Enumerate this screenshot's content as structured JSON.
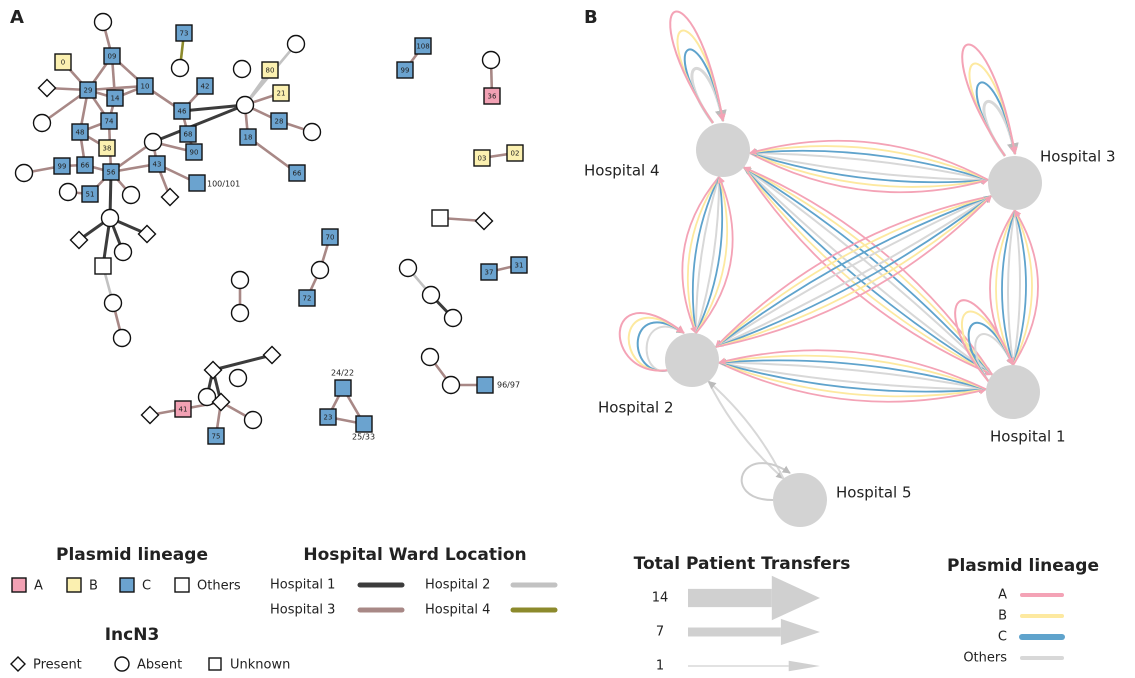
{
  "panel_a": {
    "tag": "A",
    "node_labels": [
      "73",
      "09",
      "0",
      "29",
      "10",
      "14",
      "42",
      "80",
      "21",
      "46",
      "74",
      "28",
      "48",
      "68",
      "18",
      "38",
      "90",
      "99",
      "66",
      "56",
      "43",
      "66",
      "51",
      "108",
      "99",
      "36",
      "03",
      "02",
      "70",
      "72",
      "37",
      "31",
      "23",
      "41",
      "75"
    ],
    "outer_labels": [
      "100/101",
      "24/22",
      "25/33",
      "96/97"
    ]
  },
  "panel_b": {
    "tag": "B",
    "hospitals": [
      "Hospital 1",
      "Hospital 2",
      "Hospital 3",
      "Hospital 4",
      "Hospital 5"
    ]
  },
  "legend_a": {
    "lineage_title": "Plasmid lineage",
    "lineage": [
      "A",
      "B",
      "C",
      "Others"
    ],
    "ward_title": "Hospital Ward Location",
    "wards": [
      "Hospital 1",
      "Hospital 2",
      "Hospital 3",
      "Hospital 4"
    ],
    "incn3_title": "IncN3",
    "incn3": [
      "Present",
      "Absent",
      "Unknown"
    ]
  },
  "legend_b": {
    "transfers_title": "Total Patient Transfers",
    "transfers": [
      14,
      7,
      1
    ],
    "lineage_title": "Plasmid lineage",
    "lineage": [
      "A",
      "B",
      "C",
      "Others"
    ]
  }
}
